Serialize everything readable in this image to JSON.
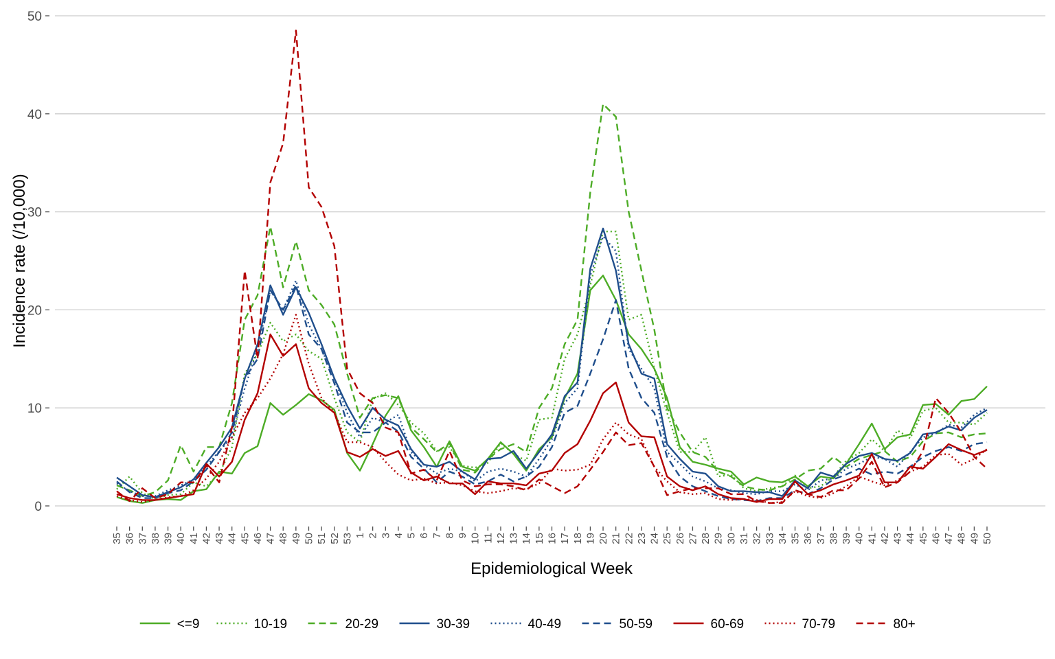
{
  "chart_data": {
    "type": "line",
    "xlabel": "Epidemiological Week",
    "ylabel": "Incidence rate (/10,000)",
    "ylim": [
      0,
      50
    ],
    "yticks": [
      0,
      10,
      20,
      30,
      40,
      50
    ],
    "grid": "horizontal",
    "legend_position": "bottom",
    "categories": [
      "35",
      "36",
      "37",
      "38",
      "39",
      "40",
      "41",
      "42",
      "43",
      "44",
      "45",
      "46",
      "47",
      "48",
      "49",
      "50",
      "51",
      "52",
      "53",
      "1",
      "2",
      "3",
      "4",
      "5",
      "6",
      "7",
      "8",
      "9",
      "10",
      "11",
      "12",
      "13",
      "14",
      "15",
      "16",
      "17",
      "18",
      "19",
      "20",
      "21",
      "22",
      "23",
      "24",
      "25",
      "26",
      "27",
      "28",
      "29",
      "30",
      "31",
      "32",
      "33",
      "34",
      "35",
      "36",
      "37",
      "38",
      "39",
      "40",
      "41",
      "42",
      "43",
      "44",
      "45",
      "46",
      "47",
      "48",
      "49",
      "50"
    ],
    "series": [
      {
        "name": "<=9",
        "color": "#4DAC26",
        "dash": "solid",
        "values": [
          0.9,
          0.5,
          0.3,
          0.6,
          0.7,
          0.6,
          1.5,
          1.7,
          3.5,
          3.3,
          5.4,
          6.1,
          10.5,
          9.3,
          10.3,
          11.4,
          10.8,
          9.8,
          5.4,
          3.6,
          6.3,
          9.2,
          11.2,
          7.7,
          6.0,
          4.0,
          6.6,
          4.0,
          3.6,
          4.8,
          6.5,
          5.3,
          3.6,
          5.8,
          7.0,
          11.0,
          13.5,
          22.0,
          23.5,
          21.0,
          17.5,
          16.0,
          14.0,
          11.0,
          6.0,
          4.5,
          4.2,
          3.8,
          3.5,
          2.2,
          2.9,
          2.5,
          2.4,
          3.0,
          2.0,
          3.0,
          2.8,
          4.3,
          6.3,
          8.4,
          5.8,
          7.0,
          7.3,
          10.3,
          10.4,
          9.3,
          10.7,
          10.9,
          12.2
        ]
      },
      {
        "name": "10-19",
        "color": "#4DAC26",
        "dash": "dot",
        "values": [
          1.7,
          3.0,
          1.3,
          0.7,
          1.1,
          1.2,
          2.4,
          2.0,
          3.3,
          6.0,
          13.5,
          15.5,
          18.7,
          16.8,
          17.5,
          15.8,
          15.0,
          11.0,
          7.5,
          6.5,
          10.9,
          11.5,
          10.3,
          8.5,
          7.4,
          5.6,
          6.0,
          4.1,
          3.9,
          4.4,
          6.4,
          5.3,
          4.6,
          8.8,
          9.0,
          15.0,
          17.5,
          22.5,
          28.0,
          28.0,
          19.0,
          19.5,
          14.0,
          9.5,
          5.5,
          5.5,
          7.0,
          3.0,
          3.2,
          1.8,
          1.5,
          1.8,
          2.0,
          3.1,
          1.8,
          2.0,
          3.0,
          4.6,
          5.4,
          6.8,
          5.6,
          7.7,
          6.9,
          9.7,
          10.0,
          8.5,
          8.5,
          8.3,
          9.5
        ]
      },
      {
        "name": "20-29",
        "color": "#4DAC26",
        "dash": "dash",
        "values": [
          2.1,
          1.6,
          1.0,
          1.4,
          2.6,
          6.2,
          3.5,
          6.0,
          6.0,
          10.5,
          19.0,
          21.5,
          28.5,
          22.3,
          27.0,
          22.0,
          20.5,
          18.5,
          13.5,
          9.0,
          11.0,
          11.3,
          11.0,
          8.0,
          6.8,
          5.5,
          6.4,
          3.7,
          3.4,
          4.8,
          5.8,
          6.3,
          5.5,
          10.0,
          12.0,
          16.5,
          19.0,
          32.0,
          41.0,
          39.7,
          30.0,
          24.0,
          18.0,
          10.0,
          7.5,
          5.5,
          5.0,
          3.5,
          3.0,
          2.0,
          1.7,
          1.6,
          2.0,
          2.7,
          3.6,
          3.8,
          5.0,
          4.0,
          4.8,
          5.2,
          5.6,
          4.5,
          5.0,
          6.6,
          7.4,
          7.5,
          7.0,
          7.3,
          7.4
        ]
      },
      {
        "name": "30-39",
        "color": "#1F4E8C",
        "dash": "solid",
        "values": [
          2.9,
          2.0,
          1.1,
          0.9,
          1.4,
          1.9,
          2.7,
          4.4,
          6.0,
          8.0,
          13.0,
          16.5,
          22.5,
          19.5,
          22.3,
          19.7,
          16.5,
          13.0,
          10.2,
          7.9,
          10.0,
          8.8,
          8.2,
          5.8,
          4.2,
          4.0,
          4.5,
          3.5,
          2.7,
          4.8,
          4.9,
          5.6,
          3.8,
          5.5,
          7.3,
          11.2,
          12.6,
          24.2,
          28.3,
          24.0,
          16.5,
          13.5,
          13.0,
          6.3,
          4.8,
          3.5,
          3.3,
          2.0,
          1.5,
          1.5,
          1.4,
          1.4,
          1.0,
          2.6,
          1.8,
          3.4,
          3.0,
          4.3,
          5.1,
          5.4,
          4.8,
          4.6,
          5.4,
          7.3,
          7.5,
          8.1,
          7.7,
          9.0,
          9.8
        ]
      },
      {
        "name": "40-49",
        "color": "#1F4E8C",
        "dash": "dot",
        "values": [
          2.3,
          1.5,
          1.0,
          1.0,
          1.6,
          2.1,
          2.7,
          4.0,
          5.6,
          7.0,
          12.0,
          16.0,
          22.0,
          20.0,
          23.0,
          18.5,
          16.0,
          13.0,
          9.5,
          7.0,
          9.0,
          8.5,
          9.3,
          5.5,
          4.2,
          3.3,
          3.8,
          3.5,
          2.5,
          3.5,
          3.8,
          3.5,
          3.0,
          4.8,
          6.8,
          10.5,
          12.0,
          23.5,
          27.5,
          26.0,
          16.0,
          14.0,
          12.0,
          5.5,
          4.3,
          3.0,
          2.5,
          1.8,
          1.6,
          1.3,
          1.2,
          1.5,
          1.5,
          2.2,
          1.6,
          2.6,
          2.8,
          3.8,
          4.3,
          5.0,
          4.8,
          4.0,
          5.5,
          7.0,
          7.4,
          8.3,
          8.0,
          9.3,
          10.0
        ]
      },
      {
        "name": "50-59",
        "color": "#1F4E8C",
        "dash": "dash",
        "values": [
          2.5,
          1.4,
          0.8,
          0.8,
          1.3,
          1.6,
          2.5,
          3.7,
          5.5,
          7.5,
          13.0,
          15.0,
          22.0,
          20.0,
          22.5,
          17.5,
          16.0,
          12.5,
          8.5,
          7.5,
          7.5,
          8.5,
          7.6,
          5.0,
          3.8,
          2.4,
          3.5,
          3.0,
          2.2,
          2.5,
          3.2,
          2.5,
          3.0,
          4.0,
          6.0,
          9.5,
          10.2,
          13.5,
          17.0,
          21.0,
          14.0,
          11.0,
          9.5,
          5.0,
          3.0,
          2.0,
          1.5,
          1.0,
          0.7,
          0.6,
          0.5,
          0.8,
          0.8,
          1.6,
          1.2,
          1.8,
          2.7,
          3.2,
          3.8,
          3.2,
          3.5,
          3.3,
          4.0,
          5.0,
          5.6,
          6.0,
          5.6,
          6.3,
          6.5
        ]
      },
      {
        "name": "60-69",
        "color": "#B30000",
        "dash": "solid",
        "values": [
          1.2,
          0.8,
          0.6,
          0.6,
          0.8,
          1.0,
          1.2,
          4.3,
          3.0,
          4.5,
          8.8,
          11.5,
          17.5,
          15.3,
          16.5,
          12.0,
          10.5,
          9.5,
          5.5,
          5.0,
          5.8,
          5.1,
          5.6,
          3.4,
          2.6,
          3.0,
          2.3,
          2.3,
          1.2,
          2.5,
          2.3,
          2.3,
          2.1,
          3.3,
          3.6,
          5.4,
          6.3,
          8.7,
          11.5,
          12.6,
          8.5,
          7.1,
          7.0,
          3.0,
          2.0,
          1.6,
          2.0,
          1.2,
          0.8,
          0.7,
          0.4,
          0.7,
          0.7,
          2.5,
          1.2,
          1.6,
          2.2,
          2.6,
          3.1,
          5.3,
          2.4,
          2.4,
          4.0,
          3.8,
          5.0,
          6.3,
          5.7,
          5.2,
          5.7
        ]
      },
      {
        "name": "70-79",
        "color": "#B30000",
        "dash": "dot",
        "values": [
          1.0,
          0.6,
          0.4,
          0.6,
          0.9,
          1.0,
          1.6,
          2.8,
          4.5,
          7.0,
          9.5,
          11.0,
          13.0,
          15.5,
          19.5,
          14.5,
          11.0,
          9.5,
          6.5,
          6.5,
          6.0,
          4.5,
          3.2,
          2.6,
          2.8,
          2.3,
          2.4,
          2.1,
          1.5,
          1.3,
          1.5,
          1.8,
          1.7,
          2.3,
          3.8,
          3.6,
          3.7,
          4.2,
          6.8,
          8.5,
          7.3,
          6.8,
          4.0,
          2.5,
          1.4,
          1.2,
          1.3,
          0.7,
          0.6,
          0.7,
          0.6,
          0.3,
          0.4,
          1.5,
          1.0,
          0.8,
          1.3,
          2.0,
          3.0,
          2.5,
          2.1,
          2.6,
          3.5,
          4.0,
          5.2,
          5.3,
          4.2,
          4.8,
          5.8
        ]
      },
      {
        "name": "80+",
        "color": "#B30000",
        "dash": "dash",
        "values": [
          1.5,
          0.5,
          1.8,
          0.8,
          1.2,
          2.4,
          2.4,
          4.1,
          2.4,
          8.0,
          24.0,
          15.0,
          33.0,
          37.0,
          48.5,
          32.5,
          30.5,
          26.5,
          14.0,
          11.5,
          10.5,
          8.0,
          7.5,
          3.3,
          3.7,
          2.6,
          5.6,
          2.6,
          2.0,
          2.2,
          2.2,
          2.0,
          1.6,
          2.7,
          2.0,
          1.3,
          2.0,
          3.7,
          5.5,
          7.5,
          6.2,
          6.4,
          4.0,
          1.1,
          1.5,
          1.8,
          1.8,
          1.8,
          1.2,
          1.2,
          0.5,
          0.3,
          0.3,
          1.6,
          1.2,
          0.9,
          1.6,
          1.6,
          2.8,
          4.5,
          1.9,
          2.4,
          3.5,
          5.6,
          11.0,
          9.5,
          7.5,
          5.0,
          3.8
        ]
      }
    ]
  }
}
